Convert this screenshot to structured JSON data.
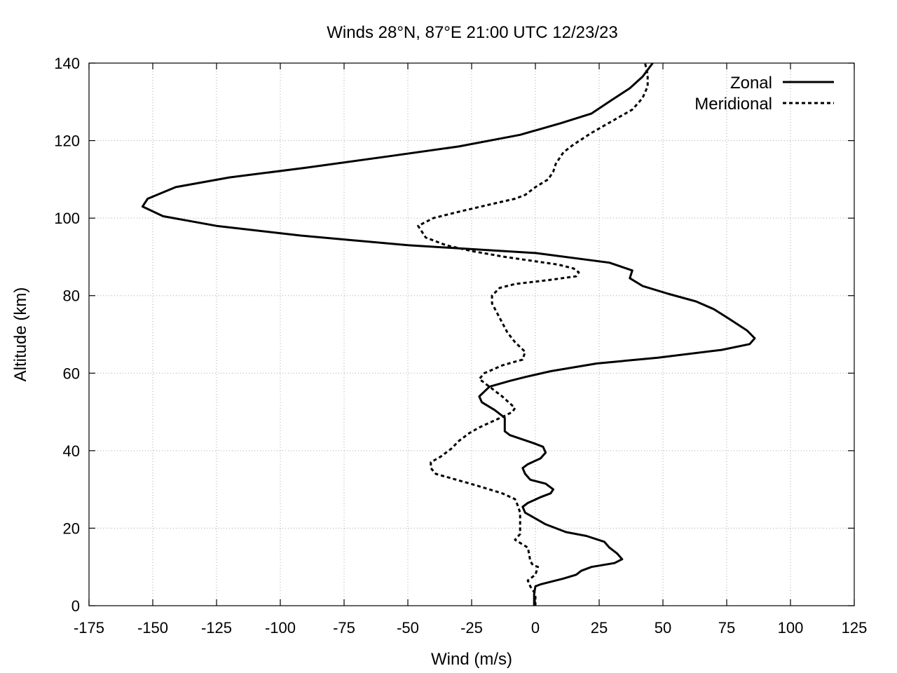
{
  "chart_data": {
    "type": "line",
    "title": "Winds 28°N, 87°E 21:00 UTC 12/23/23",
    "xlabel": "Wind (m/s)",
    "ylabel": "Altitude (km)",
    "xlim": [
      -175,
      125
    ],
    "ylim": [
      0,
      140
    ],
    "xticks": [
      "-175",
      "-150",
      "-125",
      "-100",
      "-75",
      "-50",
      "-25",
      "0",
      "25",
      "50",
      "75",
      "100",
      "125"
    ],
    "yticks": [
      "0",
      "20",
      "40",
      "60",
      "80",
      "100",
      "120",
      "140"
    ],
    "grid": true,
    "legend_position": "top-right",
    "series": [
      {
        "name": "Zonal",
        "style": "solid",
        "color": "#000000",
        "points": [
          [
            -0.5,
            0
          ],
          [
            -0.5,
            3
          ],
          [
            0,
            5
          ],
          [
            2,
            5.5
          ],
          [
            11,
            7
          ],
          [
            16,
            8
          ],
          [
            18,
            9
          ],
          [
            22,
            10
          ],
          [
            31,
            11
          ],
          [
            34,
            12
          ],
          [
            32,
            13.5
          ],
          [
            29,
            15
          ],
          [
            27,
            16.5
          ],
          [
            20,
            18
          ],
          [
            12,
            19
          ],
          [
            4,
            21
          ],
          [
            0,
            22.5
          ],
          [
            -4,
            24
          ],
          [
            -5,
            25.5
          ],
          [
            -3,
            26.5
          ],
          [
            2,
            28
          ],
          [
            6,
            29
          ],
          [
            7,
            30
          ],
          [
            4,
            31.5
          ],
          [
            -2,
            32.5
          ],
          [
            -4,
            34
          ],
          [
            -5,
            35.5
          ],
          [
            -3,
            36.5
          ],
          [
            2,
            38
          ],
          [
            4,
            39.5
          ],
          [
            3,
            41
          ],
          [
            -1,
            42
          ],
          [
            -10,
            44
          ],
          [
            -12,
            45
          ],
          [
            -12,
            47
          ],
          [
            -12,
            48.5
          ],
          [
            -16,
            50.5
          ],
          [
            -21,
            52.5
          ],
          [
            -22,
            54
          ],
          [
            -18,
            56.5
          ],
          [
            -10,
            58
          ],
          [
            -4,
            59
          ],
          [
            6,
            60.5
          ],
          [
            24,
            62.5
          ],
          [
            48,
            64
          ],
          [
            73,
            66
          ],
          [
            84,
            67.5
          ],
          [
            86,
            69
          ],
          [
            83,
            71
          ],
          [
            76,
            74
          ],
          [
            70,
            76.5
          ],
          [
            63,
            78.5
          ],
          [
            52,
            80.5
          ],
          [
            42,
            82.5
          ],
          [
            37,
            84.5
          ],
          [
            38,
            86.5
          ],
          [
            29,
            88.5
          ],
          [
            0,
            91
          ],
          [
            -50,
            93
          ],
          [
            -92,
            95.5
          ],
          [
            -125,
            98
          ],
          [
            -146,
            100.5
          ],
          [
            -154,
            103
          ],
          [
            -152,
            105
          ],
          [
            -141,
            108
          ],
          [
            -120,
            110.5
          ],
          [
            -90,
            113
          ],
          [
            -57,
            116
          ],
          [
            -30,
            118.5
          ],
          [
            -6,
            121.5
          ],
          [
            10,
            124.5
          ],
          [
            22,
            127
          ],
          [
            30,
            130.5
          ],
          [
            37,
            133.5
          ],
          [
            42,
            136.5
          ],
          [
            46,
            140
          ]
        ]
      },
      {
        "name": "Meridional",
        "style": "dashed",
        "color": "#000000",
        "points": [
          [
            0,
            0
          ],
          [
            0,
            3
          ],
          [
            -2,
            5
          ],
          [
            -3,
            6.5
          ],
          [
            0,
            8
          ],
          [
            1,
            10
          ],
          [
            -1,
            10.5
          ],
          [
            -2,
            11.5
          ],
          [
            -2.5,
            13.5
          ],
          [
            -3,
            15
          ],
          [
            -8,
            17
          ],
          [
            -6,
            18.5
          ],
          [
            -6,
            20
          ],
          [
            -6,
            22
          ],
          [
            -6,
            24
          ],
          [
            -7,
            26
          ],
          [
            -8,
            27.5
          ],
          [
            -13,
            29
          ],
          [
            -23,
            31
          ],
          [
            -31,
            32.5
          ],
          [
            -39,
            34
          ],
          [
            -41,
            35.5
          ],
          [
            -41,
            37
          ],
          [
            -37,
            38.5
          ],
          [
            -33,
            40.5
          ],
          [
            -30,
            42.5
          ],
          [
            -26,
            44.5
          ],
          [
            -22,
            46
          ],
          [
            -17,
            47.5
          ],
          [
            -12,
            49
          ],
          [
            -9,
            50
          ],
          [
            -8,
            51
          ],
          [
            -13,
            54
          ],
          [
            -19,
            57
          ],
          [
            -22,
            58.5
          ],
          [
            -20,
            60
          ],
          [
            -13,
            62
          ],
          [
            -5,
            63.5
          ],
          [
            -4,
            65.5
          ],
          [
            -8,
            68
          ],
          [
            -11,
            70.5
          ],
          [
            -13,
            73
          ],
          [
            -15,
            75.5
          ],
          [
            -17,
            78
          ],
          [
            -17,
            80
          ],
          [
            -14,
            82
          ],
          [
            -8,
            83
          ],
          [
            5,
            84
          ],
          [
            16,
            85
          ],
          [
            17,
            86
          ],
          [
            15,
            87
          ],
          [
            9,
            88
          ],
          [
            -12,
            90
          ],
          [
            -25,
            91.5
          ],
          [
            -35,
            93
          ],
          [
            -43,
            95
          ],
          [
            -46,
            98
          ],
          [
            -40,
            100
          ],
          [
            -31,
            101.5
          ],
          [
            -18,
            103.5
          ],
          [
            -8,
            105
          ],
          [
            -4,
            106
          ],
          [
            0,
            108
          ],
          [
            5,
            110
          ],
          [
            7,
            112
          ],
          [
            8,
            114
          ],
          [
            11,
            117
          ],
          [
            15,
            119
          ],
          [
            22,
            122
          ],
          [
            30,
            125
          ],
          [
            38,
            128
          ],
          [
            42,
            131
          ],
          [
            44,
            134
          ],
          [
            44,
            137
          ],
          [
            43,
            140
          ]
        ]
      }
    ]
  }
}
